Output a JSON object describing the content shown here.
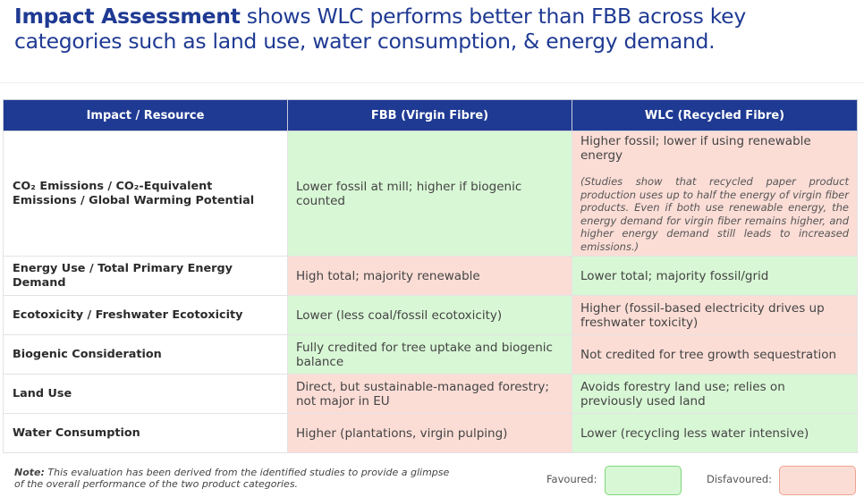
{
  "title": {
    "bold": "Impact Assessment",
    "rest": " shows WLC performs better than FBB across key categories such as land use, water consumption, & energy demand."
  },
  "table": {
    "headers": [
      "Impact / Resource",
      "FBB (Virgin Fibre)",
      "WLC (Recycled Fibre)"
    ],
    "rows": [
      {
        "label": "CO₂ Emissions / CO₂-Equivalent Emissions / Global Warming Potential",
        "fbb": "Lower fossil at mill; higher if biogenic counted",
        "wlc": "Higher fossil; lower if using renewable energy",
        "wlc_note": "(Studies show that recycled paper product production uses up to half the energy of virgin fiber products. Even if both use renewable energy, the energy demand for virgin fiber remains higher, and higher energy demand still leads to increased emissions.)"
      },
      {
        "label": "Energy Use / Total Primary Energy Demand",
        "fbb": "High total; majority renewable",
        "wlc": "Lower total; majority fossil/grid"
      },
      {
        "label": "Ecotoxicity / Freshwater Ecotoxicity",
        "fbb": "Lower (less coal/fossil ecotoxicity)",
        "wlc": "Higher (fossil-based electricity drives up freshwater toxicity)"
      },
      {
        "label": "Biogenic Consideration",
        "fbb": "Fully credited for tree uptake and biogenic balance",
        "wlc": "Not credited for tree growth sequestration"
      },
      {
        "label": "Land Use",
        "fbb": "Direct, but sustainable-managed forestry; not major in EU",
        "wlc": "Avoids forestry land use; relies on previously used land"
      },
      {
        "label": "Water Consumption",
        "fbb": "Higher (plantations, virgin pulping)",
        "wlc": "Lower (recycling less water intensive)"
      }
    ]
  },
  "footer": {
    "note_label": "Note:",
    "note_text": " This evaluation has been derived from the identified studies to provide a glimpse of the overall performance of the two product categories.",
    "legend_favoured": "Favoured:",
    "legend_disfavoured": "Disfavoured:"
  },
  "colors": {
    "header": "#1f3a93",
    "favoured": "#d8f7d5",
    "disfavoured": "#fbddd6"
  }
}
